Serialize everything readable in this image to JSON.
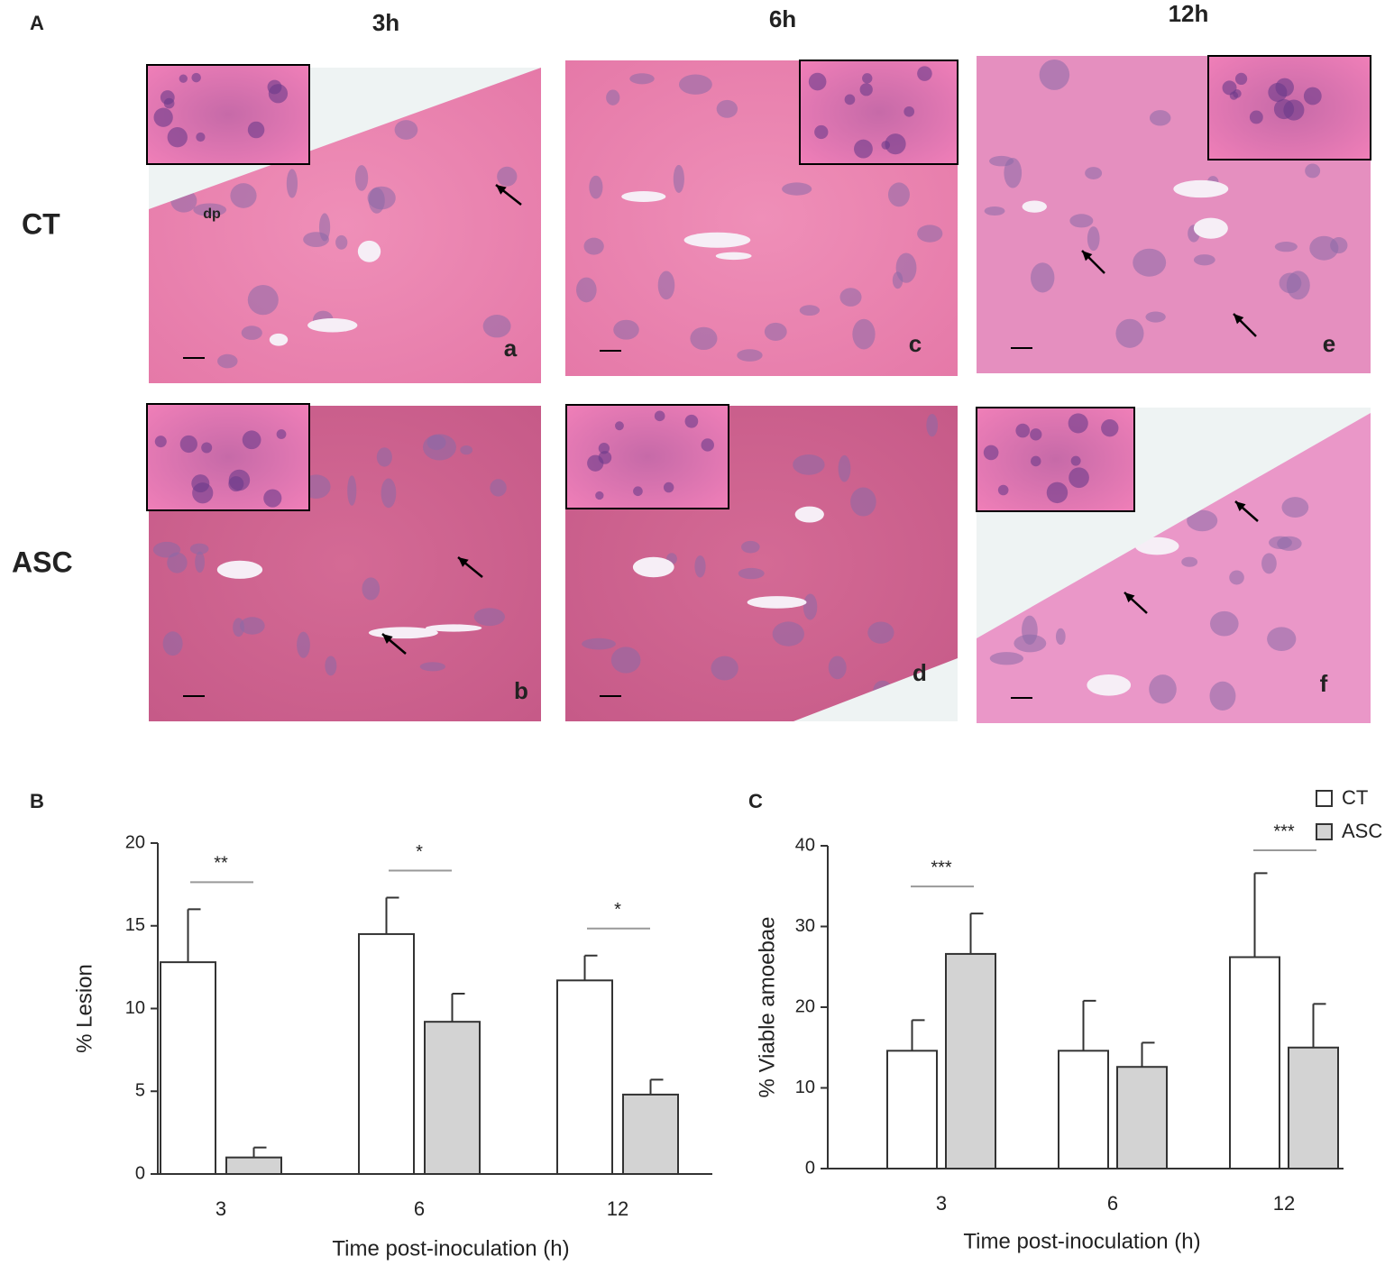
{
  "panel_a": {
    "label": "A",
    "columns": [
      "3h",
      "6h",
      "12h"
    ],
    "rows": [
      "CT",
      "ASC"
    ],
    "panel_letters": [
      [
        "a",
        "c",
        "e"
      ],
      [
        "b",
        "d",
        "f"
      ]
    ],
    "annotation": "dp"
  },
  "chart_data": [
    {
      "type": "bar",
      "panel_label": "B",
      "ylabel": "% Lesion",
      "xlabel": "Time post-inoculation (h)",
      "categories": [
        "3",
        "6",
        "12"
      ],
      "series": [
        {
          "color": "#ffffff",
          "values": [
            12.8,
            14.5,
            11.7
          ],
          "errors": [
            3.2,
            2.2,
            1.5
          ]
        },
        {
          "color": "#d3d3d3",
          "values": [
            1.0,
            9.2,
            4.8
          ],
          "errors": [
            0.6,
            1.7,
            0.9
          ]
        }
      ],
      "ylim": [
        0,
        20
      ],
      "yticks": [
        0,
        5,
        10,
        15,
        20
      ],
      "significance": [
        "**",
        "*",
        "*"
      ],
      "legend": false
    },
    {
      "type": "bar",
      "panel_label": "C",
      "ylabel": "% Viable amoebae",
      "xlabel": "Time post-inoculation (h)",
      "categories": [
        "3",
        "6",
        "12"
      ],
      "series": [
        {
          "name": "CT",
          "color": "#ffffff",
          "values": [
            14.6,
            14.6,
            26.2
          ],
          "errors": [
            3.8,
            6.2,
            10.4
          ]
        },
        {
          "name": "ASC",
          "color": "#d3d3d3",
          "values": [
            26.6,
            12.6,
            15.0
          ],
          "errors": [
            5.0,
            3.0,
            5.4
          ]
        }
      ],
      "ylim": [
        0,
        40
      ],
      "yticks": [
        0,
        10,
        20,
        30,
        40
      ],
      "significance": [
        "***",
        null,
        "***"
      ],
      "legend": "top-right"
    }
  ]
}
